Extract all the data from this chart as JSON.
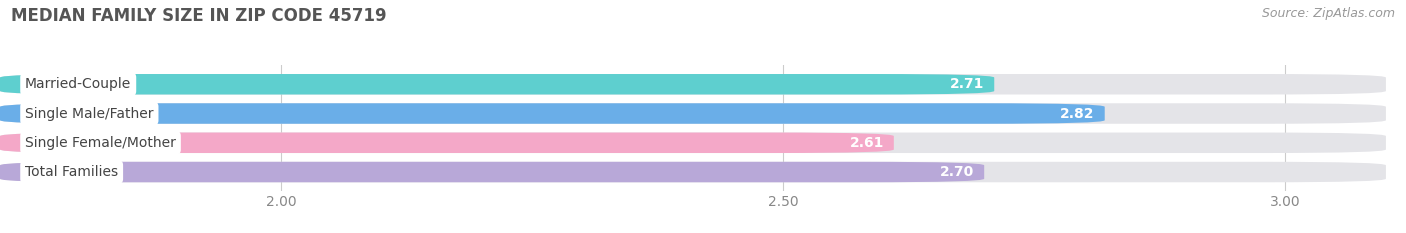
{
  "title": "MEDIAN FAMILY SIZE IN ZIP CODE 45719",
  "source": "Source: ZipAtlas.com",
  "categories": [
    "Married-Couple",
    "Single Male/Father",
    "Single Female/Mother",
    "Total Families"
  ],
  "values": [
    2.71,
    2.82,
    2.61,
    2.7
  ],
  "bar_colors": [
    "#5ecfcf",
    "#6aaee8",
    "#f4a8c8",
    "#b8a8d8"
  ],
  "bar_bg_color": "#e4e4e8",
  "xmin": 1.72,
  "xmax": 3.1,
  "xlim_display": [
    1.72,
    3.12
  ],
  "xticks": [
    2.0,
    2.5,
    3.0
  ],
  "title_fontsize": 12,
  "source_fontsize": 9,
  "value_fontsize": 10,
  "label_fontsize": 10,
  "tick_fontsize": 10,
  "bar_height": 0.7,
  "background_color": "#ffffff"
}
